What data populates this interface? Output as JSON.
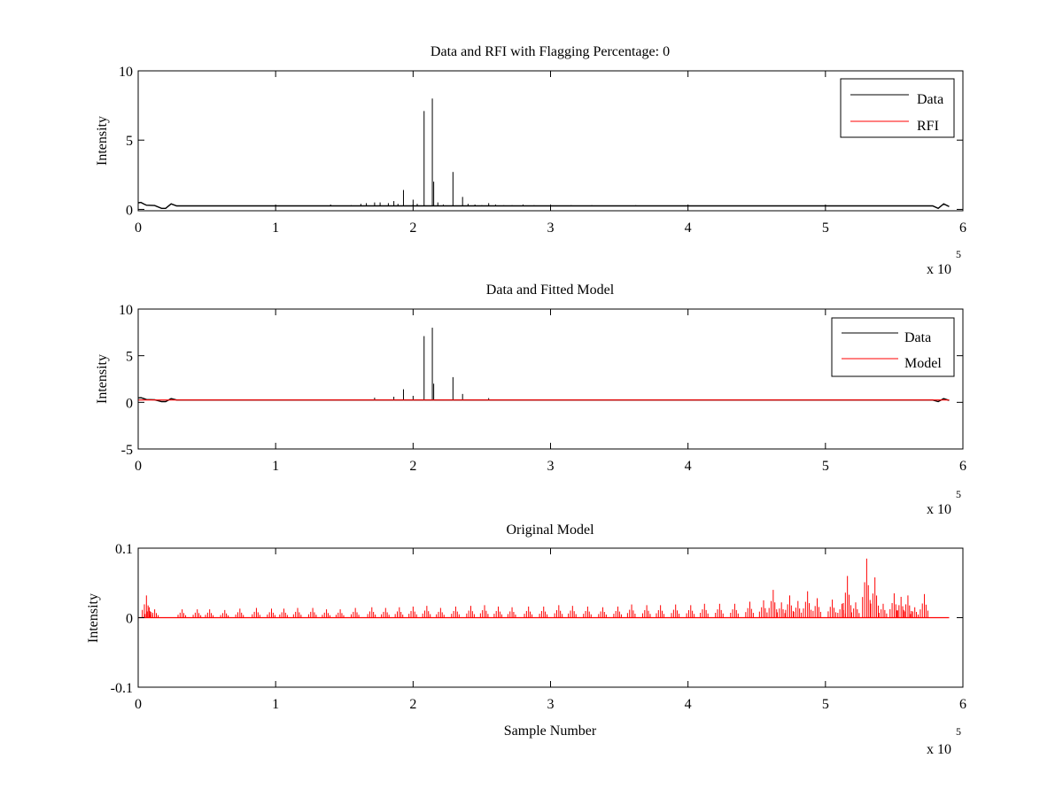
{
  "figure_bg": "#ffffff",
  "chart_data": [
    {
      "type": "line",
      "title": "Data and RFI with Flagging Percentage: 0",
      "xlabel": "",
      "ylabel": "Intensity",
      "xlim": [
        0,
        6
      ],
      "ylim": [
        -0.1,
        10
      ],
      "xticks": [
        "0",
        "1",
        "2",
        "3",
        "4",
        "5",
        "6"
      ],
      "yticks": [
        {
          "v": 0,
          "label": "0"
        },
        {
          "v": 5,
          "label": "5"
        },
        {
          "v": 10,
          "label": "10"
        }
      ],
      "x_exponent": {
        "base": "x 10",
        "power": "5"
      },
      "legend": {
        "position": "top-right",
        "entries": [
          {
            "label": "Data",
            "color": "#000000"
          },
          {
            "label": "RFI",
            "color": "#ff0000"
          }
        ]
      },
      "baseline_value": 0.25,
      "edge_dips": [
        {
          "x_range": [
            0.0,
            0.28
          ],
          "depth": 0.25
        },
        {
          "x_range": [
            5.78,
            5.9
          ],
          "depth": 0.25
        }
      ],
      "spikes": [
        {
          "x": 1.4,
          "y": 0.35
        },
        {
          "x": 1.55,
          "y": 0.3
        },
        {
          "x": 1.62,
          "y": 0.4
        },
        {
          "x": 1.66,
          "y": 0.45
        },
        {
          "x": 1.72,
          "y": 0.5
        },
        {
          "x": 1.76,
          "y": 0.5
        },
        {
          "x": 1.82,
          "y": 0.45
        },
        {
          "x": 1.86,
          "y": 0.6
        },
        {
          "x": 1.89,
          "y": 0.4
        },
        {
          "x": 1.93,
          "y": 1.4
        },
        {
          "x": 2.0,
          "y": 0.7
        },
        {
          "x": 2.03,
          "y": 0.4
        },
        {
          "x": 2.08,
          "y": 7.1
        },
        {
          "x": 2.14,
          "y": 8.0
        },
        {
          "x": 2.15,
          "y": 2.0
        },
        {
          "x": 2.18,
          "y": 0.5
        },
        {
          "x": 2.22,
          "y": 0.35
        },
        {
          "x": 2.29,
          "y": 2.7
        },
        {
          "x": 2.36,
          "y": 0.9
        },
        {
          "x": 2.4,
          "y": 0.4
        },
        {
          "x": 2.45,
          "y": 0.35
        },
        {
          "x": 2.5,
          "y": 0.3
        },
        {
          "x": 2.55,
          "y": 0.45
        },
        {
          "x": 2.6,
          "y": 0.35
        },
        {
          "x": 2.66,
          "y": 0.3
        },
        {
          "x": 2.72,
          "y": 0.3
        },
        {
          "x": 2.8,
          "y": 0.35
        },
        {
          "x": 2.88,
          "y": 0.3
        },
        {
          "x": 3.0,
          "y": 0.35
        },
        {
          "x": 3.15,
          "y": 0.3
        },
        {
          "x": 3.3,
          "y": 0.3
        },
        {
          "x": 3.62,
          "y": 0.3
        }
      ],
      "series": [
        {
          "name": "Data",
          "color": "#000000"
        },
        {
          "name": "RFI",
          "color": "#ff0000"
        }
      ]
    },
    {
      "type": "line",
      "title": "Data and Fitted Model",
      "xlabel": "",
      "ylabel": "Intensity",
      "xlim": [
        0,
        6
      ],
      "ylim": [
        -5,
        10
      ],
      "xticks": [
        "0",
        "1",
        "2",
        "3",
        "4",
        "5",
        "6"
      ],
      "yticks": [
        {
          "v": -5,
          "label": "-5"
        },
        {
          "v": 0,
          "label": "0"
        },
        {
          "v": 5,
          "label": "5"
        },
        {
          "v": 10,
          "label": "10"
        }
      ],
      "x_exponent": {
        "base": "x 10",
        "power": "5"
      },
      "legend": {
        "position": "top-right",
        "entries": [
          {
            "label": "Data",
            "color": "#000000"
          },
          {
            "label": "Model",
            "color": "#ff0000"
          }
        ]
      },
      "baseline_value": 0.25,
      "edge_dips": [
        {
          "x_range": [
            0.0,
            0.28
          ],
          "depth": 0.25
        },
        {
          "x_range": [
            5.78,
            5.9
          ],
          "depth": 0.25
        }
      ],
      "spikes": [
        {
          "x": 1.72,
          "y": 0.5
        },
        {
          "x": 1.86,
          "y": 0.6
        },
        {
          "x": 1.93,
          "y": 1.4
        },
        {
          "x": 2.0,
          "y": 0.7
        },
        {
          "x": 2.08,
          "y": 7.1
        },
        {
          "x": 2.14,
          "y": 8.0
        },
        {
          "x": 2.15,
          "y": 2.0
        },
        {
          "x": 2.29,
          "y": 2.7
        },
        {
          "x": 2.36,
          "y": 0.9
        },
        {
          "x": 2.55,
          "y": 0.45
        }
      ],
      "model_value": 0.25,
      "series": [
        {
          "name": "Data",
          "color": "#000000"
        },
        {
          "name": "Model",
          "color": "#ff0000"
        }
      ]
    },
    {
      "type": "line",
      "title": "Original Model",
      "xlabel": "Sample Number",
      "ylabel": "Intensity",
      "xlim": [
        0,
        6
      ],
      "ylim": [
        -0.1,
        0.1
      ],
      "xticks": [
        "0",
        "1",
        "2",
        "3",
        "4",
        "5",
        "6"
      ],
      "yticks": [
        {
          "v": -0.1,
          "label": "-0.1"
        },
        {
          "v": 0,
          "label": "0"
        },
        {
          "v": 0.1,
          "label": "0.1"
        }
      ],
      "x_exponent": {
        "base": "x 10",
        "power": "5"
      },
      "baseline_value": 0,
      "x_end": 5.9,
      "spikes": [
        {
          "x": 0.06,
          "y": 0.032
        },
        {
          "x": 0.08,
          "y": 0.015
        },
        {
          "x": 0.12,
          "y": 0.012
        },
        {
          "x": 0.32,
          "y": 0.012
        },
        {
          "x": 0.43,
          "y": 0.012
        },
        {
          "x": 0.52,
          "y": 0.012
        },
        {
          "x": 0.63,
          "y": 0.011
        },
        {
          "x": 0.74,
          "y": 0.013
        },
        {
          "x": 0.86,
          "y": 0.014
        },
        {
          "x": 0.97,
          "y": 0.013
        },
        {
          "x": 1.06,
          "y": 0.013
        },
        {
          "x": 1.16,
          "y": 0.014
        },
        {
          "x": 1.27,
          "y": 0.014
        },
        {
          "x": 1.37,
          "y": 0.012
        },
        {
          "x": 1.47,
          "y": 0.012
        },
        {
          "x": 1.58,
          "y": 0.014
        },
        {
          "x": 1.7,
          "y": 0.015
        },
        {
          "x": 1.8,
          "y": 0.014
        },
        {
          "x": 1.9,
          "y": 0.015
        },
        {
          "x": 2.0,
          "y": 0.016
        },
        {
          "x": 2.1,
          "y": 0.017
        },
        {
          "x": 2.2,
          "y": 0.014
        },
        {
          "x": 2.31,
          "y": 0.016
        },
        {
          "x": 2.42,
          "y": 0.017
        },
        {
          "x": 2.52,
          "y": 0.018
        },
        {
          "x": 2.62,
          "y": 0.016
        },
        {
          "x": 2.72,
          "y": 0.015
        },
        {
          "x": 2.84,
          "y": 0.016
        },
        {
          "x": 2.95,
          "y": 0.016
        },
        {
          "x": 3.06,
          "y": 0.018
        },
        {
          "x": 3.16,
          "y": 0.017
        },
        {
          "x": 3.27,
          "y": 0.016
        },
        {
          "x": 3.38,
          "y": 0.015
        },
        {
          "x": 3.49,
          "y": 0.016
        },
        {
          "x": 3.59,
          "y": 0.019
        },
        {
          "x": 3.7,
          "y": 0.018
        },
        {
          "x": 3.8,
          "y": 0.018
        },
        {
          "x": 3.91,
          "y": 0.019
        },
        {
          "x": 4.02,
          "y": 0.018
        },
        {
          "x": 4.12,
          "y": 0.02
        },
        {
          "x": 4.23,
          "y": 0.02
        },
        {
          "x": 4.34,
          "y": 0.02
        },
        {
          "x": 4.45,
          "y": 0.023
        },
        {
          "x": 4.55,
          "y": 0.025
        },
        {
          "x": 4.62,
          "y": 0.04
        },
        {
          "x": 4.68,
          "y": 0.022
        },
        {
          "x": 4.74,
          "y": 0.032
        },
        {
          "x": 4.8,
          "y": 0.024
        },
        {
          "x": 4.87,
          "y": 0.038
        },
        {
          "x": 4.94,
          "y": 0.028
        },
        {
          "x": 5.05,
          "y": 0.026
        },
        {
          "x": 5.12,
          "y": 0.02
        },
        {
          "x": 5.16,
          "y": 0.06
        },
        {
          "x": 5.22,
          "y": 0.022
        },
        {
          "x": 5.3,
          "y": 0.085
        },
        {
          "x": 5.36,
          "y": 0.058
        },
        {
          "x": 5.42,
          "y": 0.02
        },
        {
          "x": 5.5,
          "y": 0.035
        },
        {
          "x": 5.55,
          "y": 0.03
        },
        {
          "x": 5.6,
          "y": 0.032
        },
        {
          "x": 5.65,
          "y": 0.015
        },
        {
          "x": 5.72,
          "y": 0.034
        }
      ],
      "series": [
        {
          "name": "",
          "color": "#ff0000"
        }
      ]
    }
  ]
}
